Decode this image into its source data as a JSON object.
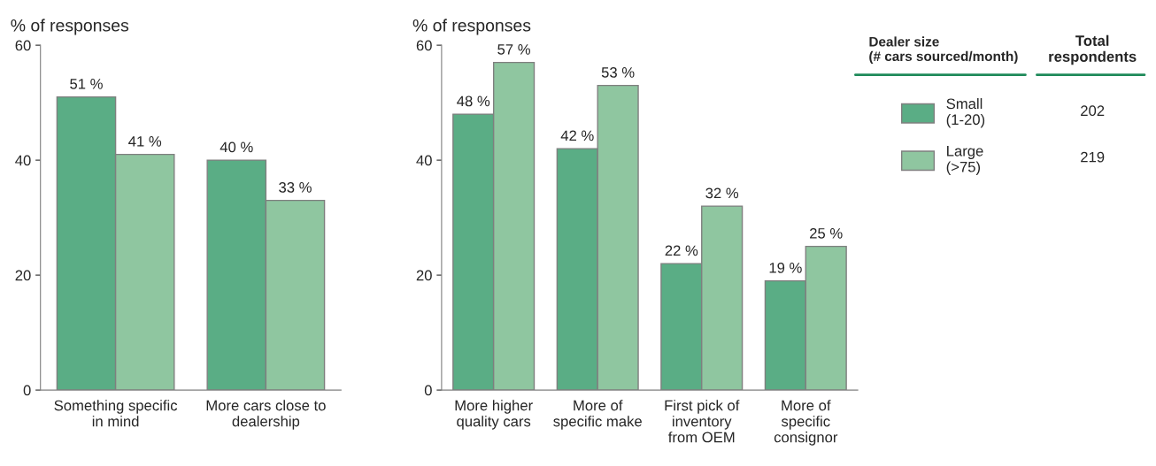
{
  "chart_data": [
    {
      "type": "bar",
      "ylabel": "% of responses",
      "categories": [
        "Something specific\nin mind",
        "More cars close to\ndealership"
      ],
      "ylim": [
        0,
        60
      ],
      "yticks": [
        0,
        20,
        40,
        60
      ],
      "grid": false,
      "legend": false,
      "series": [
        {
          "color": "#5aad85",
          "values": [
            51,
            40
          ],
          "value_labels": [
            "51 %",
            "40 %"
          ]
        },
        {
          "color": "#8fc6a0",
          "values": [
            41,
            33
          ],
          "value_labels": [
            "41 %",
            "33 %"
          ]
        }
      ]
    },
    {
      "type": "bar",
      "ylabel": "% of responses",
      "categories": [
        "More higher\nquality cars",
        "More of\nspecific make",
        "First pick of\ninventory\nfrom OEM",
        "More of\nspecific\nconsignor"
      ],
      "ylim": [
        0,
        60
      ],
      "yticks": [
        0,
        20,
        40,
        60
      ],
      "grid": false,
      "legend": "right",
      "legend_title": "Dealer size\n(# cars sourced/month)",
      "annotations": [
        "Total respondents",
        "202",
        "219"
      ],
      "series": [
        {
          "name": "Small\n(1-20)",
          "color": "#5aad85",
          "values": [
            48,
            42,
            22,
            19
          ],
          "value_labels": [
            "48 %",
            "42 %",
            "22 %",
            "19 %"
          ]
        },
        {
          "name": "Large\n(>75)",
          "color": "#8fc6a0",
          "values": [
            57,
            53,
            32,
            25
          ],
          "value_labels": [
            "57 %",
            "53 %",
            "32 %",
            "25 %"
          ]
        }
      ]
    }
  ]
}
